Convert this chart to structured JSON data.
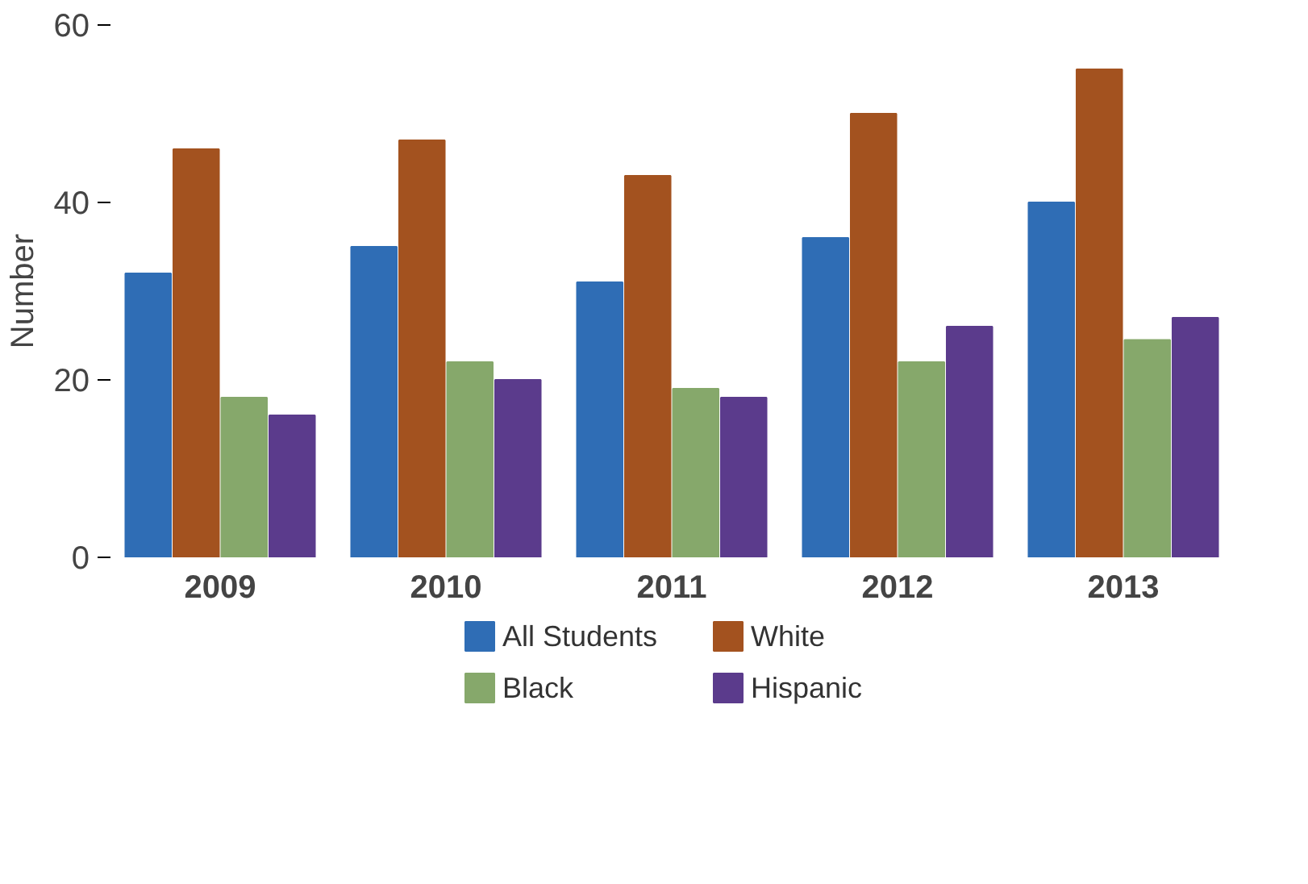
{
  "chart_data": {
    "type": "bar",
    "ylabel": "Number",
    "categories": [
      "2009",
      "2010",
      "2011",
      "2012",
      "2013"
    ],
    "series": [
      {
        "name": "All Students",
        "color": "#2f6db5",
        "values": [
          32,
          35,
          31,
          36,
          40
        ]
      },
      {
        "name": "White",
        "color": "#a3521f",
        "values": [
          46,
          47,
          43,
          50,
          55
        ]
      },
      {
        "name": "Black",
        "color": "#86a86b",
        "values": [
          18,
          22,
          19,
          22,
          24.5
        ]
      },
      {
        "name": "Hispanic",
        "color": "#5b3b8c",
        "values": [
          16,
          20,
          18,
          26,
          27
        ]
      }
    ],
    "ylim": [
      0,
      60
    ],
    "yticks": [
      0,
      20,
      40,
      60
    ],
    "grid": false,
    "legend": "bottom"
  }
}
